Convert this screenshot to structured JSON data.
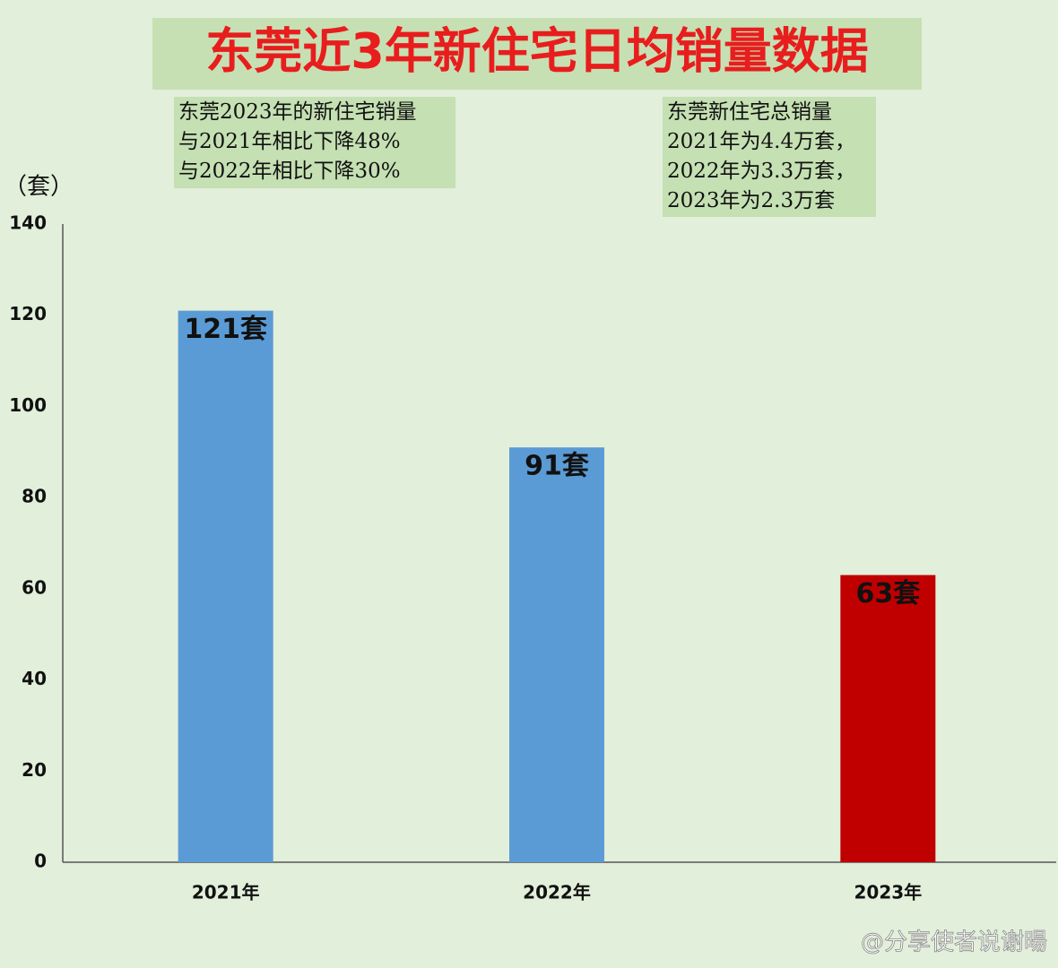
{
  "chart_data": {
    "type": "bar",
    "title": "东莞近3年新住宅日均销量数据",
    "annotations": [
      {
        "lines": [
          "东莞2023年的新住宅销量",
          "与2021年相比下降48%",
          "与2022年相比下降30%"
        ]
      },
      {
        "lines": [
          "东莞新住宅总销量",
          "2021年为4.4万套，",
          "2022年为3.3万套，",
          "2023年为2.3万套"
        ]
      }
    ],
    "y_label": "（套）",
    "categories": [
      "2021年",
      "2022年",
      "2023年"
    ],
    "values": [
      121,
      91,
      63
    ],
    "value_labels": [
      "121套",
      "91套",
      "63套"
    ],
    "colors": [
      "#5b9bd5",
      "#5b9bd5",
      "#c00000"
    ],
    "ylim": [
      0,
      140
    ],
    "yticks": [
      0,
      20,
      40,
      60,
      80,
      100,
      120,
      140
    ],
    "grid": false,
    "watermark": "@分享使者说谢暘"
  }
}
